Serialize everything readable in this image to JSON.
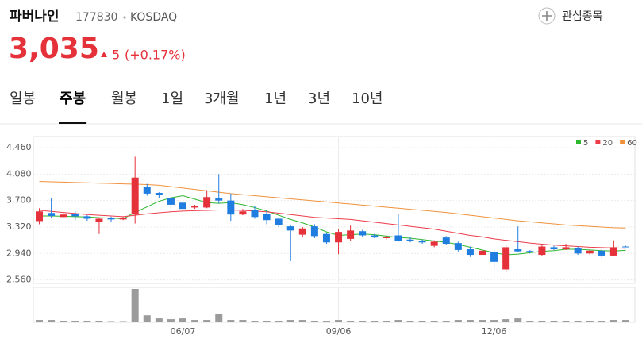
{
  "header": {
    "name": "파버나인",
    "code": "177830",
    "market": "KOSDAQ",
    "watch": "관심종목",
    "price": "3,035",
    "change": "5",
    "change_pct": "(+0.17%)"
  },
  "tabs": [
    "일봉",
    "주봉",
    "월봉",
    "1일",
    "3개월",
    "1년",
    "3년",
    "10년"
  ],
  "active_tab": 1,
  "chart_data": {
    "type": "candlestick",
    "categories": [
      null,
      null,
      null,
      null,
      null,
      null,
      null,
      null,
      null,
      null,
      null,
      null,
      "06/07",
      null,
      null,
      null,
      null,
      null,
      null,
      null,
      null,
      null,
      null,
      null,
      null,
      "09/06",
      null,
      null,
      null,
      null,
      null,
      null,
      null,
      null,
      null,
      null,
      null,
      null,
      "12/06",
      null,
      null,
      null,
      null,
      null,
      null,
      null,
      null,
      null,
      null,
      null
    ],
    "open": [
      3406,
      3522,
      3464,
      3510,
      3475,
      3395,
      3450,
      3430,
      3500,
      3890,
      3810,
      3740,
      3670,
      3600,
      3600,
      3730,
      3700,
      3500,
      3560,
      3510,
      3440,
      3330,
      3210,
      3330,
      3220,
      3100,
      3150,
      3260,
      3200,
      3160,
      3200,
      3140,
      3125,
      3050,
      3170,
      3090,
      3000,
      2920,
      2960,
      2710,
      3000,
      2975,
      2920,
      3030,
      3000,
      3020,
      2940,
      2980,
      2910,
      3040
    ],
    "high": [
      3590,
      3730,
      3520,
      3545,
      3490,
      3450,
      3470,
      3470,
      4330,
      3940,
      3820,
      3760,
      3870,
      3640,
      3850,
      4080,
      3800,
      3580,
      3620,
      3560,
      3460,
      3350,
      3320,
      3360,
      3240,
      3290,
      3340,
      3280,
      3220,
      3200,
      3510,
      3180,
      3140,
      3130,
      3190,
      3110,
      3040,
      3240,
      3000,
      3060,
      3330,
      2990,
      3060,
      3050,
      3080,
      3040,
      2990,
      3000,
      3130,
      3050
    ],
    "low": [
      3360,
      3450,
      3450,
      3420,
      3410,
      3220,
      3400,
      3420,
      3370,
      3770,
      3740,
      3540,
      3560,
      3580,
      3590,
      3660,
      3410,
      3490,
      3440,
      3360,
      3320,
      2830,
      3180,
      3160,
      3080,
      2930,
      3120,
      3180,
      3160,
      3140,
      3110,
      3100,
      3080,
      3030,
      3060,
      2970,
      2890,
      2900,
      2720,
      2680,
      2960,
      2940,
      2910,
      2990,
      2990,
      2920,
      2920,
      2880,
      2900,
      3030
    ],
    "close": [
      3545,
      3480,
      3500,
      3475,
      3440,
      3440,
      3430,
      3450,
      4030,
      3800,
      3780,
      3640,
      3580,
      3625,
      3750,
      3700,
      3500,
      3545,
      3465,
      3420,
      3350,
      3270,
      3300,
      3190,
      3100,
      3250,
      3270,
      3200,
      3170,
      3180,
      3120,
      3120,
      3100,
      3110,
      3080,
      2990,
      2920,
      2980,
      2820,
      3030,
      2970,
      2960,
      3040,
      3000,
      3030,
      2940,
      2980,
      2910,
      3030,
      3035
    ],
    "up_color": "#e5313a",
    "down_color": "#1f7de0",
    "moving_averages": [
      {
        "name": "5",
        "color": "#2db52d",
        "values": [
          3480,
          3480,
          3475,
          3470,
          3465,
          3455,
          3450,
          3440,
          3530,
          3610,
          3690,
          3740,
          3770,
          3720,
          3670,
          3660,
          3670,
          3640,
          3600,
          3550,
          3490,
          3430,
          3380,
          3320,
          3250,
          3200,
          3210,
          3220,
          3210,
          3190,
          3170,
          3160,
          3140,
          3120,
          3100,
          3070,
          3030,
          2990,
          2950,
          2920,
          2930,
          2950,
          2970,
          2980,
          3000,
          3000,
          2990,
          2980,
          2975,
          2985
        ]
      },
      {
        "name": "20",
        "color": "#ec3c4a",
        "values": [
          3560,
          3545,
          3530,
          3515,
          3500,
          3490,
          3480,
          3470,
          3490,
          3510,
          3525,
          3540,
          3550,
          3555,
          3560,
          3565,
          3565,
          3560,
          3550,
          3540,
          3520,
          3500,
          3480,
          3460,
          3450,
          3440,
          3430,
          3410,
          3390,
          3370,
          3350,
          3330,
          3310,
          3290,
          3260,
          3230,
          3200,
          3180,
          3150,
          3130,
          3110,
          3090,
          3075,
          3060,
          3050,
          3040,
          3030,
          3025,
          3020,
          3015
        ]
      },
      {
        "name": "60",
        "color": "#f0923c",
        "values": [
          3975,
          3970,
          3965,
          3960,
          3955,
          3950,
          3945,
          3940,
          3935,
          3930,
          3920,
          3900,
          3880,
          3860,
          3840,
          3820,
          3800,
          3785,
          3770,
          3755,
          3740,
          3725,
          3710,
          3695,
          3680,
          3665,
          3650,
          3635,
          3620,
          3605,
          3590,
          3575,
          3560,
          3545,
          3530,
          3510,
          3490,
          3470,
          3450,
          3430,
          3410,
          3395,
          3380,
          3365,
          3350,
          3340,
          3330,
          3320,
          3310,
          3305
        ]
      }
    ],
    "volume": {
      "color": "#9b9b9b",
      "values": [
        2,
        2,
        1,
        1,
        1,
        1,
        0.5,
        0.5,
        42,
        8,
        4,
        3,
        4,
        2,
        2,
        10,
        2,
        2,
        1,
        1,
        1,
        2,
        2,
        1,
        1,
        2,
        1,
        1,
        1,
        1,
        2,
        1,
        1,
        1,
        1,
        2,
        2,
        2,
        2,
        3,
        4,
        1,
        1,
        1,
        1,
        1,
        1,
        1,
        2,
        2
      ]
    },
    "ylim": [
      2510,
      4620
    ],
    "yticks": [
      {
        "value": 2560,
        "label": "2,560"
      },
      {
        "value": 2940,
        "label": "2,940"
      },
      {
        "value": 3320,
        "label": "3,320"
      },
      {
        "value": 3700,
        "label": "3,700"
      },
      {
        "value": 4080,
        "label": "4,080"
      },
      {
        "value": 4460,
        "label": "4,460"
      }
    ],
    "grid": true
  }
}
